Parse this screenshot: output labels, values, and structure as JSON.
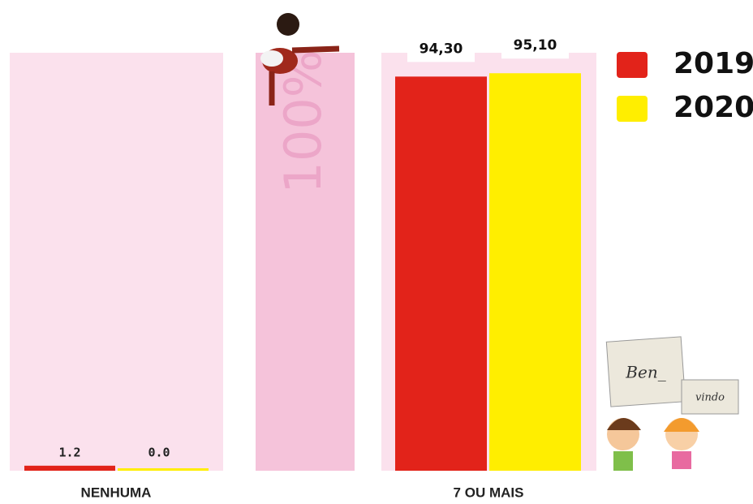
{
  "chart_data": {
    "type": "bar",
    "categories": [
      "NENHUMA",
      "7 OU MAIS"
    ],
    "series": [
      {
        "name": "2019",
        "color": "#e2231a",
        "values": [
          1.2,
          94.3
        ],
        "value_labels": [
          "1.2",
          "94,30"
        ]
      },
      {
        "name": "2020",
        "color": "#ffee00",
        "values": [
          0.0,
          95.1
        ],
        "value_labels": [
          "0.0",
          "95,10"
        ]
      }
    ],
    "ylim": [
      0,
      100
    ],
    "annotation": "100%"
  },
  "signs": [
    "Ben_",
    "vindo"
  ]
}
